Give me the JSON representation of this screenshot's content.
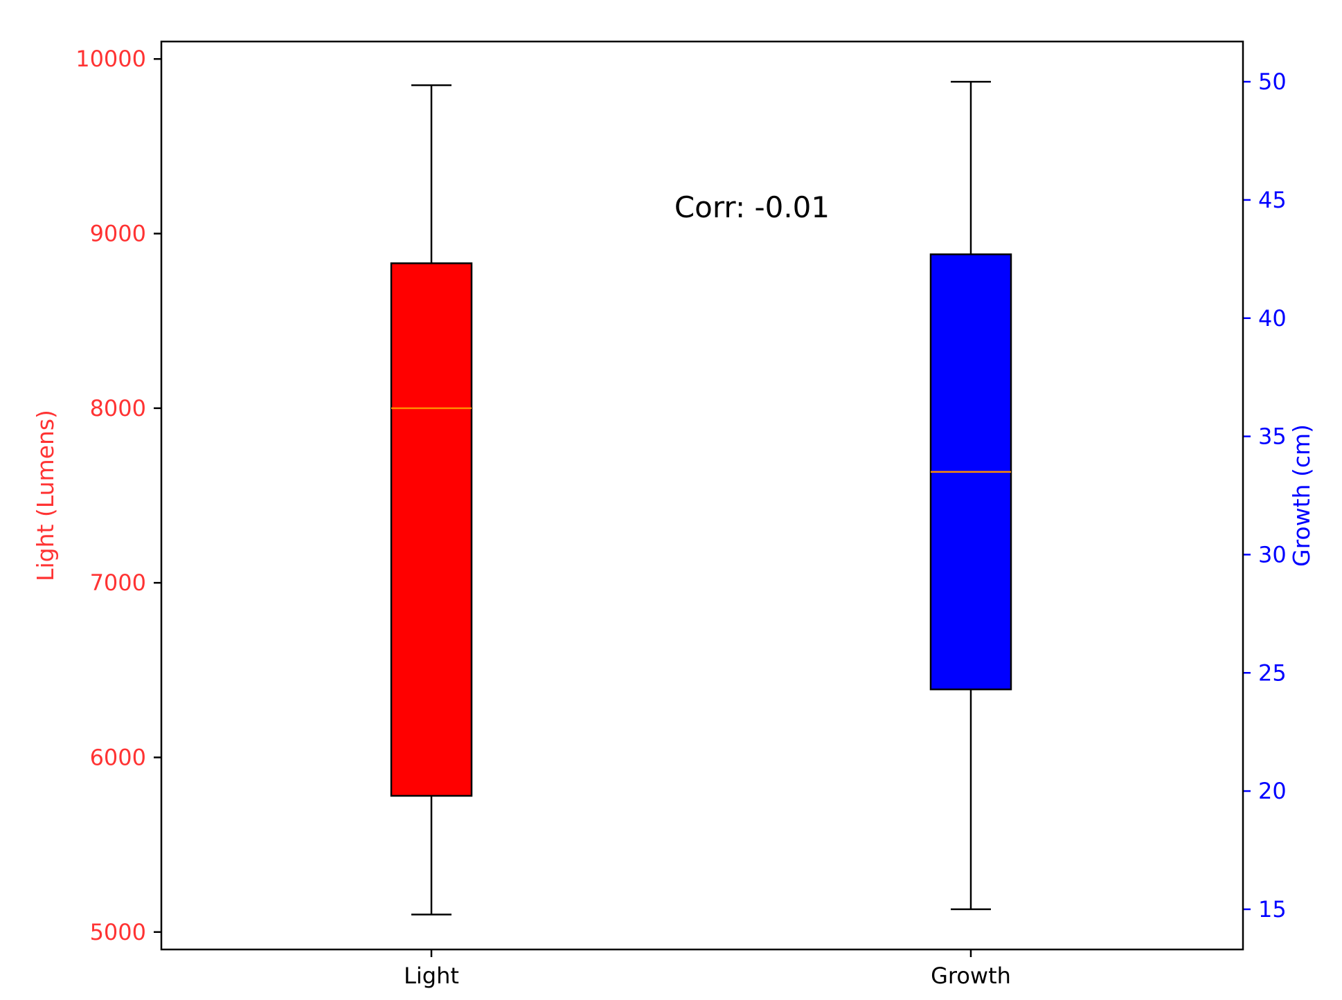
{
  "chart_data": {
    "type": "boxplot",
    "categories": [
      "Light",
      "Growth"
    ],
    "annotation": "Corr: -0.01",
    "left_axis": {
      "label": "Light (Lumens)",
      "color": "#ff3333",
      "ticks": [
        "5000",
        "6000",
        "7000",
        "8000",
        "9000",
        "10000"
      ],
      "tick_values": [
        5000,
        6000,
        7000,
        8000,
        9000,
        10000
      ],
      "ylim": [
        4900,
        10100
      ]
    },
    "right_axis": {
      "label": "Growth (cm)",
      "color": "#0000ff",
      "ticks": [
        "15",
        "20",
        "25",
        "30",
        "35",
        "40",
        "45",
        "50"
      ],
      "tick_values": [
        15,
        20,
        25,
        30,
        35,
        40,
        45,
        50
      ],
      "ylim": [
        13.3,
        51.7
      ]
    },
    "boxes": [
      {
        "category": "Light",
        "axis": "left",
        "color": "#ff0000",
        "min": 5100,
        "q1": 5780,
        "median": 8000,
        "q3": 8830,
        "max": 9850
      },
      {
        "category": "Growth",
        "axis": "right",
        "color": "#0000ff",
        "min": 15,
        "q1": 24.3,
        "median": 33.5,
        "q3": 42.7,
        "max": 50
      }
    ],
    "median_color": "#ff8c00",
    "grid": false
  }
}
